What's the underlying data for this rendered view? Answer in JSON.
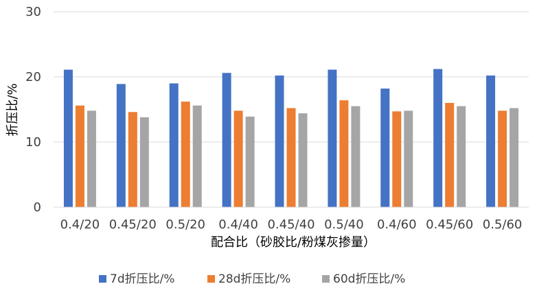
{
  "chart_data": {
    "type": "bar",
    "title": "",
    "xlabel": "配合比（砂胶比/粉煤灰掺量）",
    "ylabel": "折压比/%",
    "ylim": [
      0,
      30
    ],
    "yticks": [
      0,
      10,
      20,
      30
    ],
    "grid": true,
    "legend_position": "bottom",
    "categories": [
      "0.4/20",
      "0.45/20",
      "0.5/20",
      "0.4/40",
      "0.45/40",
      "0.5/40",
      "0.4/60",
      "0.45/60",
      "0.5/60"
    ],
    "series": [
      {
        "name": "7d折压比/%",
        "color": "#4472C4",
        "values": [
          21.1,
          18.9,
          19.0,
          20.6,
          20.2,
          21.1,
          18.2,
          21.2,
          20.2
        ]
      },
      {
        "name": "28d折压比/%",
        "color": "#ED7D31",
        "values": [
          15.6,
          14.6,
          16.2,
          14.8,
          15.2,
          16.4,
          14.7,
          16.0,
          14.8
        ]
      },
      {
        "name": "60d折压比/%",
        "color": "#A5A5A5",
        "values": [
          14.8,
          13.8,
          15.6,
          13.9,
          14.4,
          15.5,
          14.8,
          15.5,
          15.2
        ]
      }
    ]
  }
}
